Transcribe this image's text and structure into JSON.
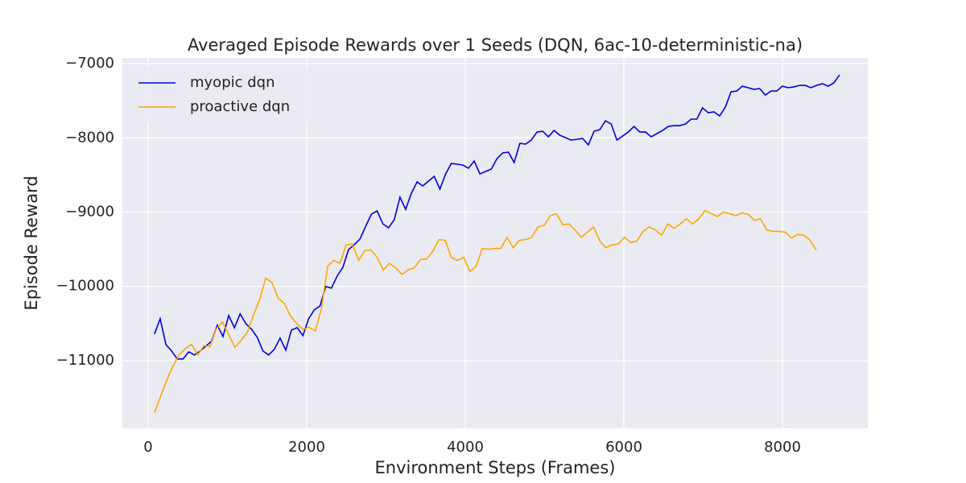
{
  "chart_data": {
    "type": "line",
    "title": "Averaged Episode Rewards over 1 Seeds (DQN, 6ac-10-deterministic-na)",
    "x_label": "Environment Steps (Frames)",
    "y_label": "Episode Reward",
    "xlim": [
      -325,
      9076
    ],
    "ylim": [
      -11911,
      -6924
    ],
    "xticks": [
      0,
      2000,
      4000,
      6000,
      8000
    ],
    "yticks": [
      {
        "value": -11000,
        "label": "−11000"
      },
      {
        "value": -10000,
        "label": "−10000"
      },
      {
        "value": -9000,
        "label": "−9000"
      },
      {
        "value": -8000,
        "label": "−8000"
      },
      {
        "value": -7000,
        "label": "−7000"
      }
    ],
    "grid": true,
    "legend": "upper left",
    "series": [
      {
        "name": "myopic dqn",
        "color": "#0000dd",
        "x": [
          80,
          152,
          224,
          296,
          368,
          440,
          512,
          584,
          656,
          728,
          800,
          872,
          944,
          1016,
          1088,
          1160,
          1232,
          1304,
          1376,
          1448,
          1520,
          1592,
          1664,
          1736,
          1808,
          1880,
          1952,
          2024,
          2096,
          2168,
          2240,
          2312,
          2384,
          2456,
          2528,
          2600,
          2672,
          2744,
          2816,
          2888,
          2960,
          3032,
          3104,
          3176,
          3248,
          3320,
          3392,
          3464,
          3536,
          3608,
          3680,
          3752,
          3824,
          3896,
          3968,
          4040,
          4112,
          4184,
          4256,
          4328,
          4400,
          4472,
          4544,
          4616,
          4688,
          4760,
          4832,
          4904,
          4976,
          5048,
          5120,
          5192,
          5264,
          5336,
          5408,
          5480,
          5552,
          5624,
          5696,
          5768,
          5840,
          5912,
          5984,
          6056,
          6128,
          6200,
          6272,
          6344,
          6416,
          6488,
          6560,
          6632,
          6704,
          6776,
          6848,
          6920,
          6992,
          7064,
          7136,
          7208,
          7280,
          7352,
          7424,
          7496,
          7568,
          7640,
          7712,
          7784,
          7856,
          7928,
          8000,
          8072,
          8144,
          8216,
          8288,
          8360,
          8432,
          8504,
          8576,
          8648,
          8720
        ],
        "values": [
          -10642,
          -10436,
          -10783,
          -10870,
          -10978,
          -10978,
          -10881,
          -10924,
          -10870,
          -10805,
          -10740,
          -10523,
          -10675,
          -10393,
          -10556,
          -10371,
          -10501,
          -10577,
          -10686,
          -10870,
          -10924,
          -10848,
          -10696,
          -10859,
          -10588,
          -10556,
          -10664,
          -10436,
          -10317,
          -10263,
          -10003,
          -10024,
          -9862,
          -9743,
          -9504,
          -9439,
          -9363,
          -9190,
          -9027,
          -8984,
          -9157,
          -9211,
          -9103,
          -8799,
          -8962,
          -8745,
          -8593,
          -8648,
          -8583,
          -8518,
          -8691,
          -8485,
          -8344,
          -8355,
          -8366,
          -8409,
          -8312,
          -8485,
          -8453,
          -8420,
          -8279,
          -8203,
          -8192,
          -8333,
          -8073,
          -8084,
          -8030,
          -7921,
          -7911,
          -7986,
          -7900,
          -7965,
          -7997,
          -8030,
          -8019,
          -8008,
          -8095,
          -7911,
          -7889,
          -7770,
          -7813,
          -8030,
          -7976,
          -7921,
          -7846,
          -7921,
          -7921,
          -7986,
          -7943,
          -7900,
          -7846,
          -7835,
          -7835,
          -7813,
          -7748,
          -7748,
          -7596,
          -7661,
          -7650,
          -7705,
          -7585,
          -7379,
          -7369,
          -7304,
          -7325,
          -7347,
          -7336,
          -7423,
          -7369,
          -7369,
          -7304,
          -7325,
          -7314,
          -7293,
          -7293,
          -7325,
          -7293,
          -7271,
          -7304,
          -7260,
          -7152
        ]
      },
      {
        "name": "proactive dqn",
        "color": "#ffa500",
        "x": [
          80,
          158,
          236,
          314,
          392,
          470,
          548,
          626,
          704,
          782,
          860,
          938,
          1016,
          1094,
          1172,
          1250,
          1328,
          1406,
          1484,
          1562,
          1640,
          1718,
          1796,
          1874,
          1952,
          2030,
          2108,
          2186,
          2264,
          2342,
          2420,
          2498,
          2576,
          2654,
          2732,
          2810,
          2888,
          2966,
          3044,
          3122,
          3200,
          3278,
          3356,
          3434,
          3512,
          3590,
          3668,
          3746,
          3824,
          3902,
          3980,
          4058,
          4136,
          4214,
          4292,
          4370,
          4448,
          4526,
          4604,
          4682,
          4760,
          4838,
          4916,
          4994,
          5072,
          5150,
          5228,
          5306,
          5384,
          5462,
          5540,
          5618,
          5696,
          5774,
          5852,
          5930,
          6008,
          6086,
          6164,
          6242,
          6320,
          6398,
          6476,
          6554,
          6632,
          6710,
          6788,
          6866,
          6944,
          7022,
          7100,
          7178,
          7256,
          7334,
          7412,
          7490,
          7568,
          7646,
          7724,
          7802,
          7880,
          7958,
          8036,
          8114,
          8192,
          8270,
          8348,
          8426
        ],
        "values": [
          -11700,
          -11480,
          -11260,
          -11070,
          -10920,
          -10840,
          -10780,
          -10920,
          -10800,
          -10810,
          -10570,
          -10480,
          -10650,
          -10820,
          -10730,
          -10620,
          -10390,
          -10180,
          -9890,
          -9950,
          -10160,
          -10230,
          -10400,
          -10500,
          -10580,
          -10550,
          -10600,
          -10300,
          -9730,
          -9650,
          -9690,
          -9440,
          -9430,
          -9650,
          -9520,
          -9510,
          -9610,
          -9780,
          -9690,
          -9750,
          -9840,
          -9780,
          -9750,
          -9640,
          -9630,
          -9530,
          -9370,
          -9380,
          -9610,
          -9650,
          -9610,
          -9800,
          -9730,
          -9490,
          -9500,
          -9490,
          -9490,
          -9340,
          -9480,
          -9380,
          -9370,
          -9340,
          -9200,
          -9180,
          -9050,
          -9020,
          -9170,
          -9160,
          -9240,
          -9340,
          -9270,
          -9200,
          -9390,
          -9480,
          -9440,
          -9430,
          -9340,
          -9410,
          -9390,
          -9260,
          -9200,
          -9240,
          -9310,
          -9160,
          -9220,
          -9160,
          -9090,
          -9160,
          -9090,
          -8980,
          -9020,
          -9060,
          -9000,
          -9020,
          -9050,
          -9010,
          -9030,
          -9110,
          -9090,
          -9240,
          -9260,
          -9260,
          -9270,
          -9350,
          -9300,
          -9310,
          -9380,
          -9510
        ]
      }
    ]
  }
}
